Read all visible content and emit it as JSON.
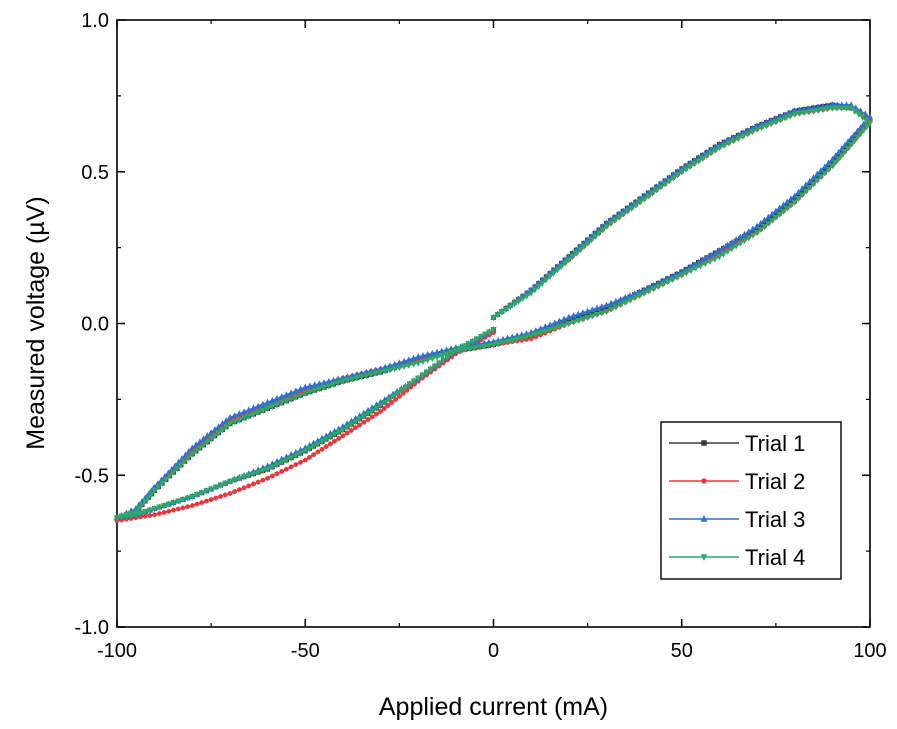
{
  "chart_data": {
    "type": "line",
    "xlabel": "Applied current (mA)",
    "ylabel": "Measured voltage (µV)",
    "xlim": [
      -100,
      100
    ],
    "ylim": [
      -1.0,
      1.0
    ],
    "xticks": [
      -100,
      -50,
      0,
      50,
      100
    ],
    "yticks": [
      -1.0,
      -0.5,
      0.0,
      0.5,
      1.0
    ],
    "xtick_labels": [
      "-100",
      "-50",
      "0",
      "50",
      "100"
    ],
    "ytick_labels": [
      "-1.0",
      "-0.5",
      "0.0",
      "0.5",
      "1.0"
    ],
    "grid": false,
    "legend_position": "bottom-right",
    "series": [
      {
        "name": "Trial 1",
        "color": "#3a3a3a",
        "marker": "square",
        "x": [
          0,
          10,
          20,
          30,
          40,
          50,
          60,
          70,
          80,
          90,
          95,
          100,
          95,
          90,
          80,
          70,
          60,
          50,
          40,
          30,
          20,
          10,
          0,
          -10,
          -20,
          -30,
          -40,
          -50,
          -60,
          -70,
          -80,
          -90,
          -95,
          -100,
          -95,
          -90,
          -80,
          -70,
          -60,
          -50,
          -40,
          -30,
          -20,
          -10,
          0
        ],
        "y": [
          0.02,
          0.11,
          0.22,
          0.33,
          0.42,
          0.51,
          0.59,
          0.65,
          0.7,
          0.72,
          0.71,
          0.67,
          0.6,
          0.53,
          0.41,
          0.31,
          0.24,
          0.17,
          0.11,
          0.05,
          0.01,
          -0.04,
          -0.07,
          -0.09,
          -0.12,
          -0.16,
          -0.19,
          -0.23,
          -0.28,
          -0.33,
          -0.43,
          -0.55,
          -0.62,
          -0.64,
          -0.63,
          -0.61,
          -0.57,
          -0.52,
          -0.48,
          -0.42,
          -0.35,
          -0.27,
          -0.18,
          -0.09,
          -0.02
        ]
      },
      {
        "name": "Trial 2",
        "color": "#e8383d",
        "marker": "circle",
        "x": [
          0,
          10,
          20,
          30,
          40,
          50,
          60,
          70,
          80,
          90,
          95,
          100,
          95,
          90,
          80,
          70,
          60,
          50,
          40,
          30,
          20,
          10,
          0,
          -10,
          -20,
          -30,
          -40,
          -50,
          -60,
          -70,
          -80,
          -90,
          -95,
          -100,
          -95,
          -90,
          -80,
          -70,
          -60,
          -50,
          -40,
          -30,
          -20,
          -10,
          0
        ],
        "y": [
          0.02,
          0.11,
          0.21,
          0.32,
          0.41,
          0.5,
          0.58,
          0.64,
          0.69,
          0.71,
          0.71,
          0.67,
          0.59,
          0.52,
          0.4,
          0.3,
          0.23,
          0.16,
          0.1,
          0.04,
          0.0,
          -0.05,
          -0.07,
          -0.09,
          -0.12,
          -0.15,
          -0.18,
          -0.22,
          -0.27,
          -0.32,
          -0.42,
          -0.54,
          -0.62,
          -0.65,
          -0.64,
          -0.63,
          -0.6,
          -0.56,
          -0.51,
          -0.45,
          -0.37,
          -0.29,
          -0.19,
          -0.1,
          -0.03
        ]
      },
      {
        "name": "Trial 3",
        "color": "#2f6fd0",
        "marker": "triangle-up",
        "x": [
          0,
          10,
          20,
          30,
          40,
          50,
          60,
          70,
          80,
          90,
          95,
          100,
          95,
          90,
          80,
          70,
          60,
          50,
          40,
          30,
          20,
          10,
          0,
          -10,
          -20,
          -30,
          -40,
          -50,
          -60,
          -70,
          -80,
          -90,
          -95,
          -100,
          -95,
          -90,
          -80,
          -70,
          -60,
          -50,
          -40,
          -30,
          -20,
          -10,
          0
        ],
        "y": [
          0.02,
          0.11,
          0.22,
          0.33,
          0.42,
          0.51,
          0.59,
          0.65,
          0.7,
          0.72,
          0.72,
          0.68,
          0.61,
          0.54,
          0.42,
          0.32,
          0.24,
          0.17,
          0.11,
          0.06,
          0.02,
          -0.03,
          -0.06,
          -0.08,
          -0.11,
          -0.15,
          -0.18,
          -0.21,
          -0.26,
          -0.31,
          -0.41,
          -0.54,
          -0.61,
          -0.64,
          -0.63,
          -0.61,
          -0.57,
          -0.52,
          -0.47,
          -0.41,
          -0.34,
          -0.26,
          -0.18,
          -0.09,
          -0.02
        ]
      },
      {
        "name": "Trial 4",
        "color": "#2fa869",
        "marker": "triangle-down",
        "x": [
          0,
          10,
          20,
          30,
          40,
          50,
          60,
          70,
          80,
          90,
          95,
          100,
          95,
          90,
          80,
          70,
          60,
          50,
          40,
          30,
          20,
          10,
          0,
          -10,
          -20,
          -30,
          -40,
          -50,
          -60,
          -70,
          -80,
          -90,
          -95,
          -100,
          -95,
          -90,
          -80,
          -70,
          -60,
          -50,
          -40,
          -30,
          -20,
          -10,
          0
        ],
        "y": [
          0.02,
          0.1,
          0.21,
          0.32,
          0.41,
          0.5,
          0.58,
          0.64,
          0.69,
          0.71,
          0.71,
          0.66,
          0.59,
          0.52,
          0.4,
          0.3,
          0.22,
          0.16,
          0.1,
          0.04,
          0.0,
          -0.04,
          -0.07,
          -0.09,
          -0.13,
          -0.16,
          -0.19,
          -0.23,
          -0.28,
          -0.33,
          -0.43,
          -0.55,
          -0.62,
          -0.64,
          -0.63,
          -0.61,
          -0.57,
          -0.52,
          -0.48,
          -0.42,
          -0.35,
          -0.27,
          -0.18,
          -0.09,
          -0.02
        ]
      }
    ]
  }
}
